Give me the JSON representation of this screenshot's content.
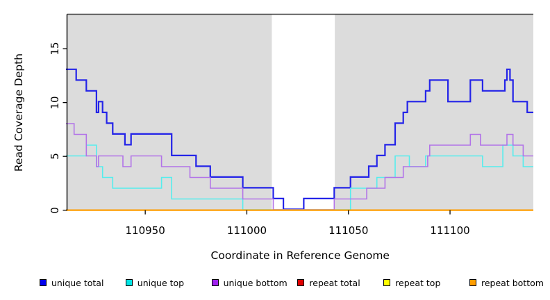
{
  "chart_data": {
    "type": "line",
    "subtype": "step-coverage",
    "title": "",
    "xlabel": "Coordinate in Reference Genome",
    "ylabel": "Read Coverage Depth",
    "x_ticks": [
      110950,
      111000,
      111050,
      111100
    ],
    "y_ticks": [
      0,
      5,
      10,
      15
    ],
    "x_range": [
      110911.5,
      111141
    ],
    "y_range": [
      0,
      18.2
    ],
    "grid": false,
    "legend_position": "bottom",
    "mask_regions": {
      "shaded_color": "#dcdcdc",
      "shaded": [
        [
          110911.5,
          111012.3
        ],
        [
          111043.3,
          111141
        ]
      ],
      "white_gap": [
        111012.3,
        111043.3
      ]
    },
    "series": [
      {
        "name": "unique total",
        "color": "#2424e8",
        "width": 2.2,
        "offset": -1.3,
        "steps": [
          [
            110911,
            13
          ],
          [
            110916,
            12
          ],
          [
            110921,
            11
          ],
          [
            110926,
            9
          ],
          [
            110927,
            10
          ],
          [
            110929,
            9
          ],
          [
            110931,
            8
          ],
          [
            110934,
            7
          ],
          [
            110940,
            6
          ],
          [
            110943,
            7
          ],
          [
            110963,
            5
          ],
          [
            110975,
            4
          ],
          [
            110982,
            3
          ],
          [
            110998,
            2
          ],
          [
            111013,
            1
          ],
          [
            111018,
            0
          ],
          [
            111028,
            1
          ],
          [
            111043,
            2
          ],
          [
            111051,
            3
          ],
          [
            111060,
            4
          ],
          [
            111064,
            5
          ],
          [
            111068,
            6
          ],
          [
            111073,
            8
          ],
          [
            111077,
            9
          ],
          [
            111079,
            10
          ],
          [
            111088,
            11
          ],
          [
            111090,
            12
          ],
          [
            111099,
            10
          ],
          [
            111110,
            12
          ],
          [
            111116,
            11
          ],
          [
            111127,
            12
          ],
          [
            111128,
            13
          ],
          [
            111129.5,
            12
          ],
          [
            111131,
            10
          ],
          [
            111138,
            9
          ]
        ]
      },
      {
        "name": "unique top",
        "color": "#55eded",
        "width": 1.6,
        "offset": -0.7,
        "steps": [
          [
            110911,
            5
          ],
          [
            110921,
            6
          ],
          [
            110926,
            4
          ],
          [
            110929,
            3
          ],
          [
            110934,
            2
          ],
          [
            110958,
            3
          ],
          [
            110963,
            1
          ],
          [
            110998,
            0
          ],
          [
            111051,
            2
          ],
          [
            111064,
            3
          ],
          [
            111073,
            5
          ],
          [
            111080,
            4
          ],
          [
            111088,
            5
          ],
          [
            111116,
            4
          ],
          [
            111126,
            6
          ],
          [
            111131,
            5
          ],
          [
            111136,
            4
          ]
        ]
      },
      {
        "name": "unique bottom",
        "color": "#b273e8",
        "width": 1.6,
        "offset": -0.7,
        "steps": [
          [
            110911,
            8
          ],
          [
            110915,
            7
          ],
          [
            110921,
            5
          ],
          [
            110926,
            4
          ],
          [
            110927,
            5
          ],
          [
            110939,
            4
          ],
          [
            110943,
            5
          ],
          [
            110958,
            4
          ],
          [
            110972,
            3
          ],
          [
            110982,
            2
          ],
          [
            110998,
            1
          ],
          [
            111013,
            0
          ],
          [
            111043,
            1
          ],
          [
            111059,
            2
          ],
          [
            111068,
            3
          ],
          [
            111077,
            4
          ],
          [
            111089,
            5
          ],
          [
            111090,
            6
          ],
          [
            111110,
            7
          ],
          [
            111115,
            6
          ],
          [
            111128,
            7
          ],
          [
            111131,
            6
          ],
          [
            111136,
            5
          ]
        ]
      },
      {
        "name": "repeat total",
        "color": "#e00000",
        "width": 1.6,
        "offset": -0.3,
        "steps": [
          [
            110911,
            0
          ]
        ]
      },
      {
        "name": "repeat top",
        "color": "#ffff00",
        "width": 1.6,
        "offset": -0.15,
        "steps": [
          [
            110911,
            0
          ]
        ]
      },
      {
        "name": "repeat bottom",
        "color": "#ff9d00",
        "width": 2.2,
        "offset": 0,
        "steps": [
          [
            110911,
            0
          ]
        ]
      }
    ],
    "legend": [
      {
        "label": "unique total",
        "color": "#0000ee"
      },
      {
        "label": "unique top",
        "color": "#00e5e5"
      },
      {
        "label": "unique bottom",
        "color": "#a020f0"
      },
      {
        "label": "repeat total",
        "color": "#e00000"
      },
      {
        "label": "repeat top",
        "color": "#ffff00"
      },
      {
        "label": "repeat bottom",
        "color": "#ff9d00"
      }
    ]
  },
  "layout_colors": {
    "plot_background": "#dcdcdc",
    "border": "#3f3f3f",
    "axis": "#000000"
  }
}
